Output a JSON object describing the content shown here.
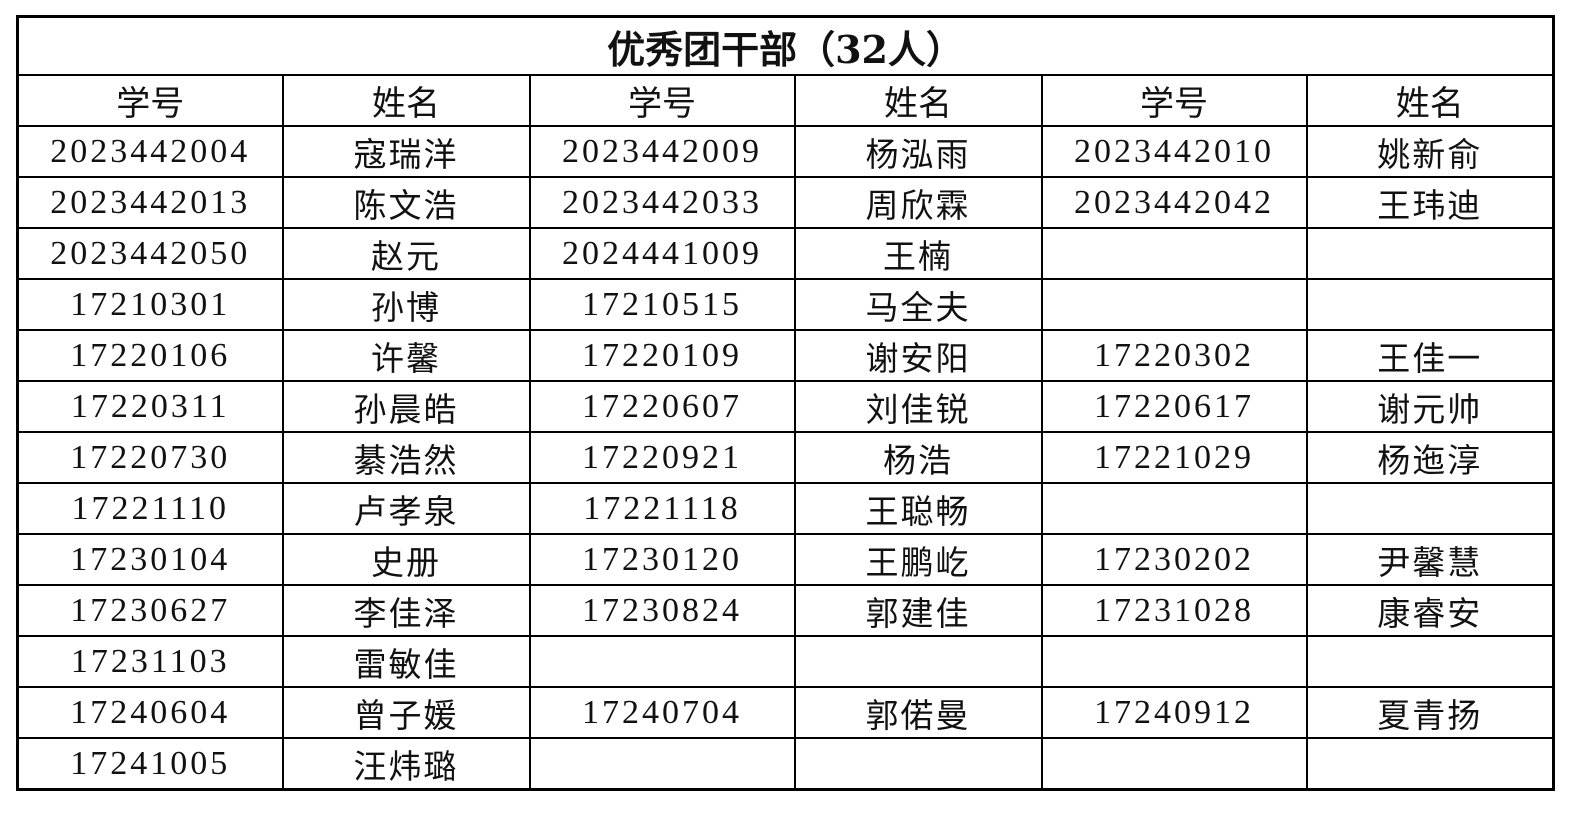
{
  "title": "优秀团干部（32人）",
  "headers": [
    "学号",
    "姓名",
    "学号",
    "姓名",
    "学号",
    "姓名"
  ],
  "rows": [
    [
      "2023442004",
      "寇瑞洋",
      "2023442009",
      "杨泓雨",
      "2023442010",
      "姚新俞"
    ],
    [
      "2023442013",
      "陈文浩",
      "2023442033",
      "周欣霖",
      "2023442042",
      "王玮迪"
    ],
    [
      "2023442050",
      "赵元",
      "2024441009",
      "王楠",
      "",
      ""
    ],
    [
      "17210301",
      "孙博",
      "17210515",
      "马全夫",
      "",
      ""
    ],
    [
      "17220106",
      "许馨",
      "17220109",
      "谢安阳",
      "17220302",
      "王佳一"
    ],
    [
      "17220311",
      "孙晨皓",
      "17220607",
      "刘佳锐",
      "17220617",
      "谢元帅"
    ],
    [
      "17220730",
      "綦浩然",
      "17220921",
      "杨浩",
      "17221029",
      "杨迤淳"
    ],
    [
      "17221110",
      "卢孝泉",
      "17221118",
      "王聪畅",
      "",
      ""
    ],
    [
      "17230104",
      "史册",
      "17230120",
      "王鹏屹",
      "17230202",
      "尹馨慧"
    ],
    [
      "17230627",
      "李佳泽",
      "17230824",
      "郭建佳",
      "17231028",
      "康睿安"
    ],
    [
      "17231103",
      "雷敏佳",
      "",
      "",
      "",
      ""
    ],
    [
      "17240604",
      "曾子媛",
      "17240704",
      "郭偌曼",
      "17240912",
      "夏青扬"
    ],
    [
      "17241005",
      "汪炜璐",
      "",
      "",
      "",
      ""
    ]
  ]
}
